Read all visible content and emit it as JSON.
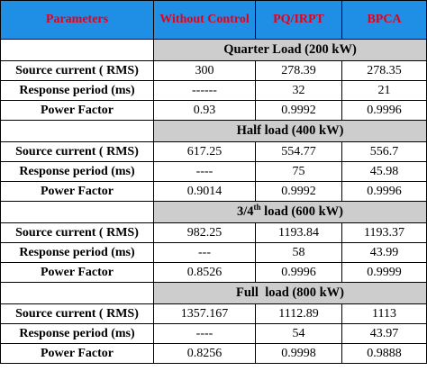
{
  "header": {
    "parameters": "Parameters",
    "without_control": "Without Control",
    "pq_irpt": "PQ/IRPT",
    "bpca": "BPCA"
  },
  "sections": [
    {
      "title": "Quarter Load (200 kW)",
      "rows": [
        {
          "param": "Source current ( RMS)",
          "without": "300",
          "pq": "278.39",
          "bpca": "278.35"
        },
        {
          "param": "Response period (ms)",
          "without": "------",
          "pq": "32",
          "bpca": "21"
        },
        {
          "param": "Power Factor",
          "without": "0.93",
          "pq": "0.9992",
          "bpca": "0.9996"
        }
      ]
    },
    {
      "title": "Half load (400 kW)",
      "rows": [
        {
          "param": "Source current ( RMS)",
          "without": "617.25",
          "pq": "554.77",
          "bpca": "556.7"
        },
        {
          "param": "Response period (ms)",
          "without": "----",
          "pq": "75",
          "bpca": "45.98"
        },
        {
          "param": "Power Factor",
          "without": "0.9014",
          "pq": "0.9992",
          "bpca": "0.9996"
        }
      ]
    },
    {
      "title_prefix": "3/4",
      "title_sup": "th",
      "title_suffix": " load (600 kW)",
      "rows": [
        {
          "param": "Source current ( RMS)",
          "without": "982.25",
          "pq": "1193.84",
          "bpca": "1193.37"
        },
        {
          "param": "Response period (ms)",
          "without": "---",
          "pq": "58",
          "bpca": "43.99"
        },
        {
          "param": "Power Factor",
          "without": "0.8526",
          "pq": "0.9996",
          "bpca": "0.9999"
        }
      ]
    },
    {
      "title": "Full  load (800 kW)",
      "rows": [
        {
          "param": "Source current ( RMS)",
          "without": "1357.167",
          "pq": "1112.89",
          "bpca": "1113"
        },
        {
          "param": "Response period (ms)",
          "without": "----",
          "pq": "54",
          "bpca": "43.97"
        },
        {
          "param": "Power Factor",
          "without": "0.8256",
          "pq": "0.9998",
          "bpca": "0.9888"
        }
      ]
    }
  ]
}
